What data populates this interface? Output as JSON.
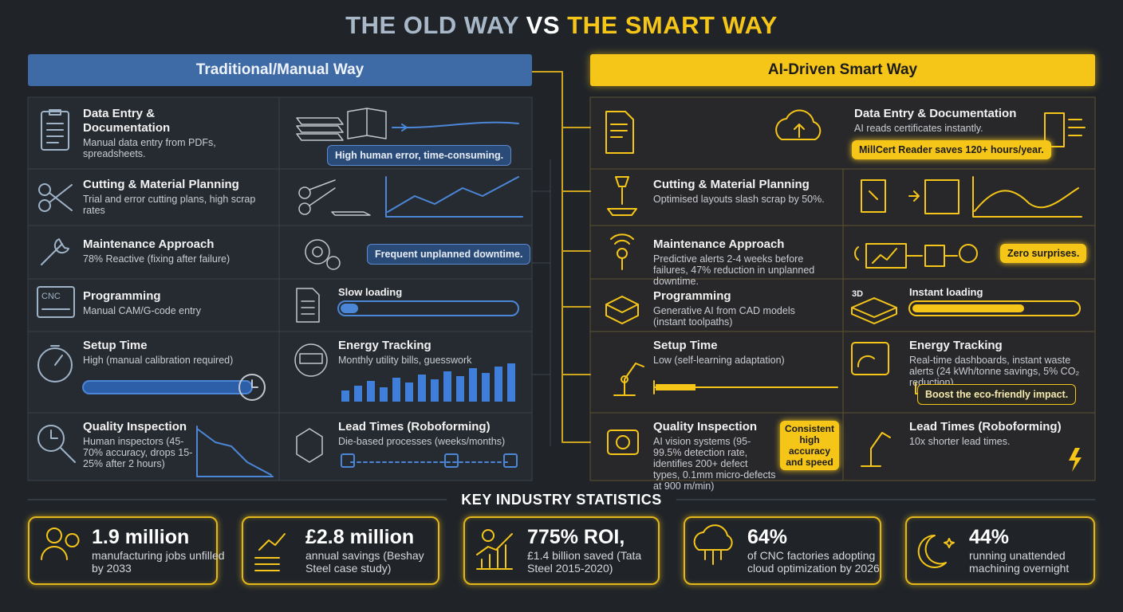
{
  "title": {
    "parts": [
      "THE OLD WAY",
      "VS",
      "THE SMART WAY"
    ]
  },
  "left": {
    "header": "Traditional/Manual Way",
    "rows": [
      {
        "main": {
          "title": "Data Entry & Documentation",
          "text": "Manual data entry from PDFs, spreadsheets."
        },
        "side": {
          "note": "High human error, time-consuming."
        }
      },
      {
        "main": {
          "title": "Cutting & Material Planning",
          "text": "Trial and error cutting plans, high scrap rates"
        }
      },
      {
        "main": {
          "title": "Maintenance Approach",
          "text": "78% Reactive (fixing after failure)"
        },
        "side": {
          "note": "Frequent unplanned downtime."
        }
      },
      {
        "main": {
          "title": "Programming",
          "text": "Manual CAM/G-code entry",
          "icon_label": "CNC"
        },
        "side": {
          "note": "Slow loading"
        }
      },
      {
        "main": {
          "title": "Setup Time",
          "text": "High (manual calibration required)"
        },
        "side": {
          "title": "Energy Tracking",
          "text": "Monthly utility bills, guesswork"
        }
      },
      {
        "main": {
          "title": "Quality Inspection",
          "text": "Human inspectors (45-70% accuracy, drops 15-25% after 2 hours)"
        },
        "side": {
          "title": "Lead Times (Roboforming)",
          "text": "Die-based processes (weeks/months)"
        }
      }
    ]
  },
  "right": {
    "header": "AI-Driven Smart Way",
    "rows": [
      {
        "main": {
          "title": "Data Entry & Documentation",
          "text": "AI reads certificates instantly.",
          "note": "MillCert Reader saves 120+ hours/year."
        }
      },
      {
        "main": {
          "title": "Cutting & Material Planning",
          "text": "Optimised layouts slash scrap by 50%."
        }
      },
      {
        "main": {
          "title": "Maintenance Approach",
          "text": "Predictive alerts 2-4 weeks before failures, 47% reduction in unplanned downtime."
        },
        "side": {
          "note": "Zero surprises."
        }
      },
      {
        "main": {
          "title": "Programming",
          "text": "Generative AI from CAD models (instant toolpaths)"
        },
        "side": {
          "tag": "3D",
          "note": "Instant loading"
        }
      },
      {
        "main": {
          "title": "Setup Time",
          "text": "Low (self-learning adaptation)"
        },
        "side": {
          "title": "Energy Tracking",
          "text": "Real-time dashboards, instant waste alerts (24 kWh/tonne savings, 5% CO₂ reduction)",
          "note": "Boost the eco-friendly impact."
        }
      },
      {
        "main": {
          "title": "Quality Inspection",
          "text": "AI vision systems (95-99.5% detection rate, identifies 200+ defect types, 0.1mm micro-defects at 900 m/min)",
          "note": "Consistent high accuracy and speed"
        },
        "side": {
          "title": "Lead Times (Roboforming)",
          "text": "10x shorter lead times."
        }
      }
    ]
  },
  "statistics": {
    "heading": "KEY INDUSTRY STATISTICS",
    "items": [
      {
        "value": "1.9 million",
        "text": "manufacturing jobs unfilled by 2033"
      },
      {
        "value": "£2.8 million",
        "text": "annual savings (Beshay Steel case study)"
      },
      {
        "value": "775% ROI,",
        "text": "£1.4 billion saved (Tata Steel 2015-2020)"
      },
      {
        "value": "64%",
        "text": "of CNC factories adopting cloud optimization by 2026"
      },
      {
        "value": "44%",
        "text": "running unattended machining overnight"
      }
    ]
  }
}
